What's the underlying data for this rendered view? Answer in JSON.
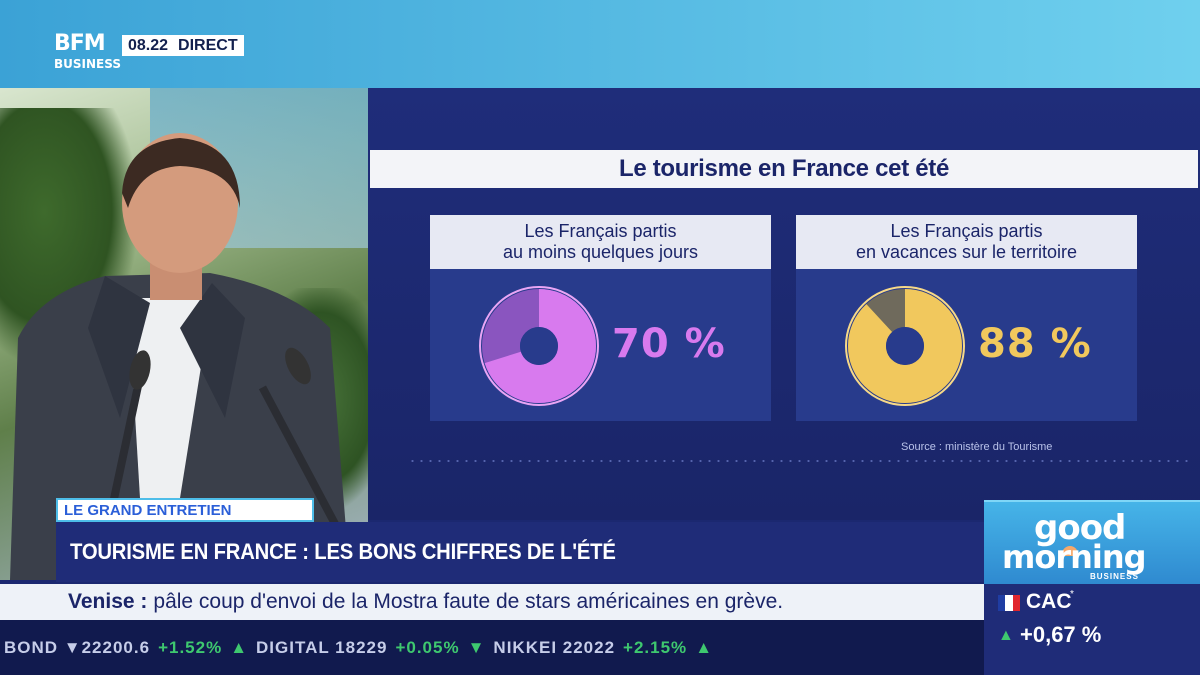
{
  "channel": {
    "logo_line1": "BFM",
    "logo_line2": "BUSINESS",
    "time": "08.22",
    "live_label": "DIRECT"
  },
  "infographic": {
    "title": "Le tourisme en France cet été",
    "cards": [
      {
        "label_line1": "Les Français partis",
        "label_line2": "au moins quelques jours",
        "percent_text": "70 %",
        "value": 70,
        "color": "#d87aee",
        "track_color": "#8a55bf"
      },
      {
        "label_line1": "Les Français partis",
        "label_line2": "en vacances sur le territoire",
        "percent_text": "88 %",
        "value": 88,
        "color": "#f1c85d",
        "track_color": "#6f6a5c"
      }
    ],
    "source": "Source : ministère du Tourisme"
  },
  "lower_third": {
    "tag": "LE GRAND ENTRETIEN",
    "headline": "TOURISME EN FRANCE : LES BONS CHIFFRES DE L'ÉTÉ"
  },
  "ticker": {
    "bold": "Venise :",
    "text": "pâle coup d'envoi de la Mostra faute de stars américaines en grève."
  },
  "market_strip": {
    "items": [
      "BOND ▼22200.6",
      "+1.52%",
      "▲",
      "DIGITAL 18229",
      "+0.05%",
      "▼",
      "NIKKEI 22022",
      "+2.15%",
      "▲"
    ]
  },
  "show": {
    "line1": "good",
    "line2": "morning",
    "line3": "BUSINESS"
  },
  "index": {
    "name": "CAC",
    "star": "*",
    "change": "+0,67 %",
    "arrow": "▲"
  }
}
